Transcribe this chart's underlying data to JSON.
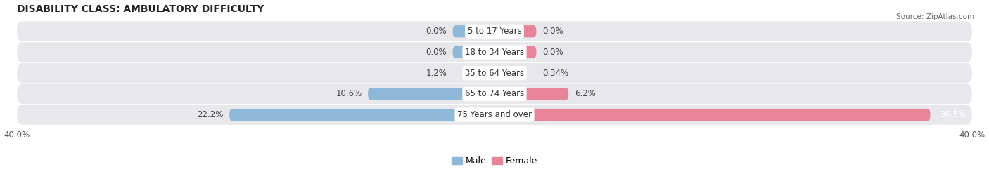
{
  "title": "DISABILITY CLASS: AMBULATORY DIFFICULTY",
  "source": "Source: ZipAtlas.com",
  "categories": [
    "5 to 17 Years",
    "18 to 34 Years",
    "35 to 64 Years",
    "65 to 74 Years",
    "75 Years and over"
  ],
  "male_values": [
    0.0,
    0.0,
    1.2,
    10.6,
    22.2
  ],
  "female_values": [
    0.0,
    0.0,
    0.34,
    6.2,
    36.5
  ],
  "male_labels": [
    "0.0%",
    "0.0%",
    "1.2%",
    "10.6%",
    "22.2%"
  ],
  "female_labels": [
    "0.0%",
    "0.0%",
    "0.34%",
    "6.2%",
    "36.5%"
  ],
  "male_color": "#8fb8d8",
  "female_color": "#e8849a",
  "row_bg_color": "#e8e8ec",
  "axis_max": 40.0,
  "bar_height": 0.58,
  "min_bar_width": 3.5,
  "title_fontsize": 10,
  "label_fontsize": 8.5,
  "tick_fontsize": 8.5,
  "cat_fontsize": 8.5,
  "legend_fontsize": 9
}
